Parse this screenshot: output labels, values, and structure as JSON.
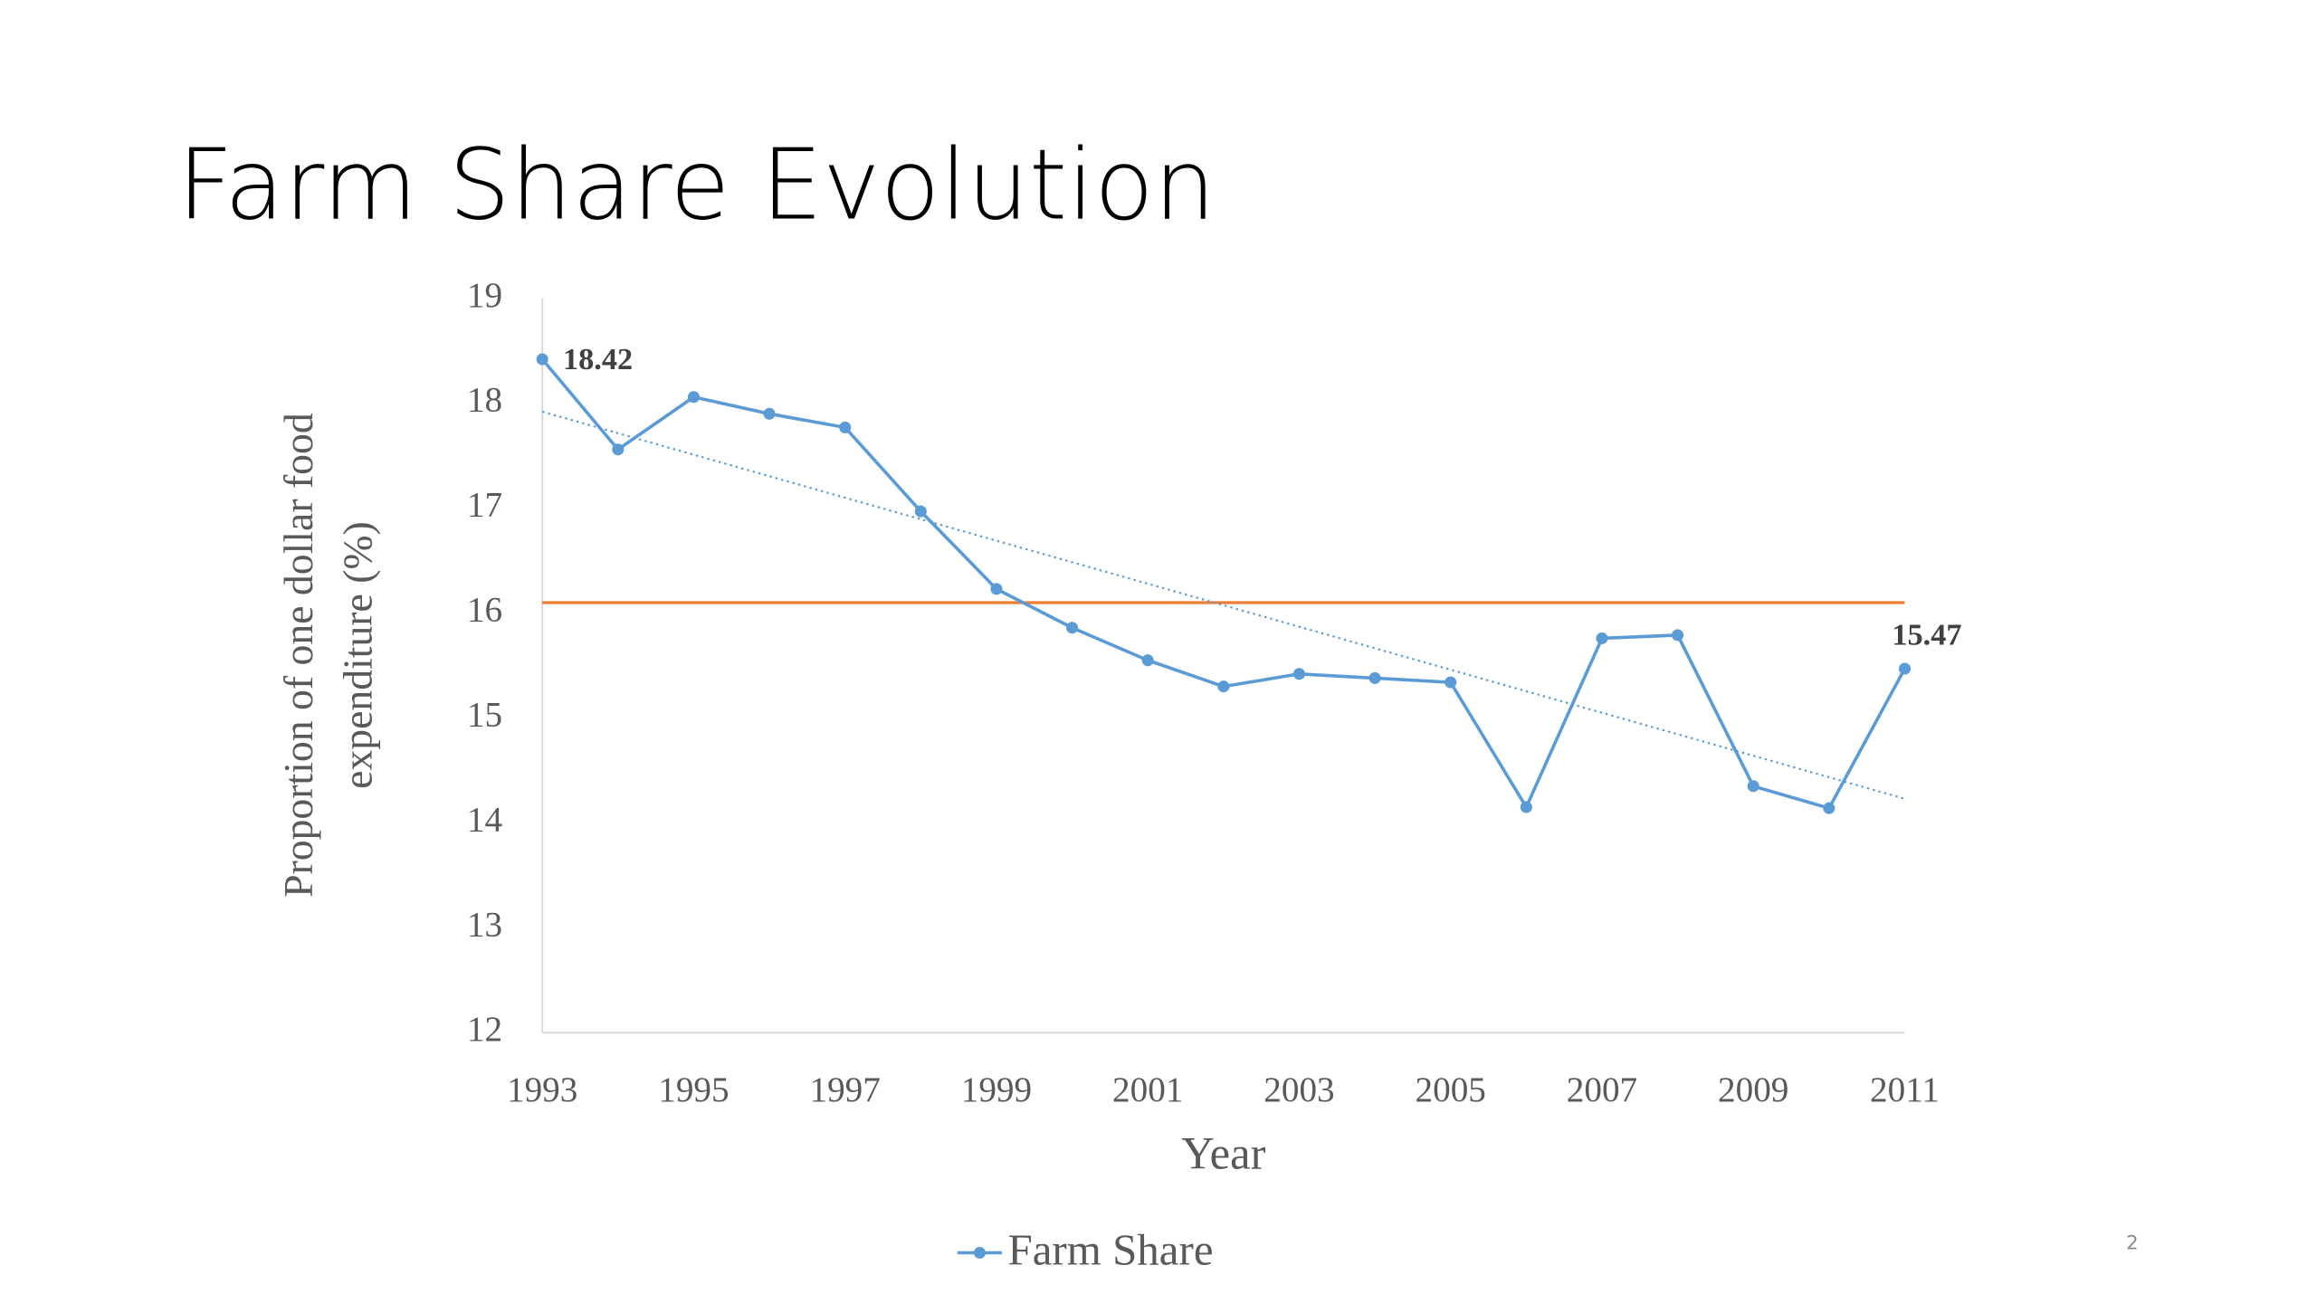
{
  "slide": {
    "title": "Farm Share Evolution",
    "number": "2"
  },
  "chart_data": {
    "type": "line",
    "xlabel": "Year",
    "ylabel": [
      "Proportion of one dollar food",
      "expenditure (%)"
    ],
    "x": [
      1993,
      1994,
      1995,
      1996,
      1997,
      1998,
      1999,
      2000,
      2001,
      2002,
      2003,
      2004,
      2005,
      2006,
      2007,
      2008,
      2009,
      2010,
      2011
    ],
    "series": [
      {
        "name": "Farm Share",
        "color": "#5b9bd5",
        "values": [
          18.42,
          17.56,
          18.06,
          17.9,
          17.77,
          16.97,
          16.23,
          15.86,
          15.55,
          15.3,
          15.42,
          15.38,
          15.34,
          14.15,
          15.76,
          15.79,
          14.35,
          14.14,
          15.47
        ]
      }
    ],
    "data_label_indices": [
      0,
      18
    ],
    "reference_line": {
      "value": 16.1,
      "color": "#ed7d31"
    },
    "trendline": {
      "start": 17.92,
      "end": 14.23,
      "color": "#5b9bd5"
    },
    "xlim": [
      1993,
      2011
    ],
    "xticks": [
      1993,
      1995,
      1997,
      1999,
      2001,
      2003,
      2005,
      2007,
      2009,
      2011
    ],
    "ylim": [
      12,
      19
    ],
    "yticks": [
      12,
      13,
      14,
      15,
      16,
      17,
      18,
      19
    ],
    "grid": false,
    "legend": "bottom"
  }
}
